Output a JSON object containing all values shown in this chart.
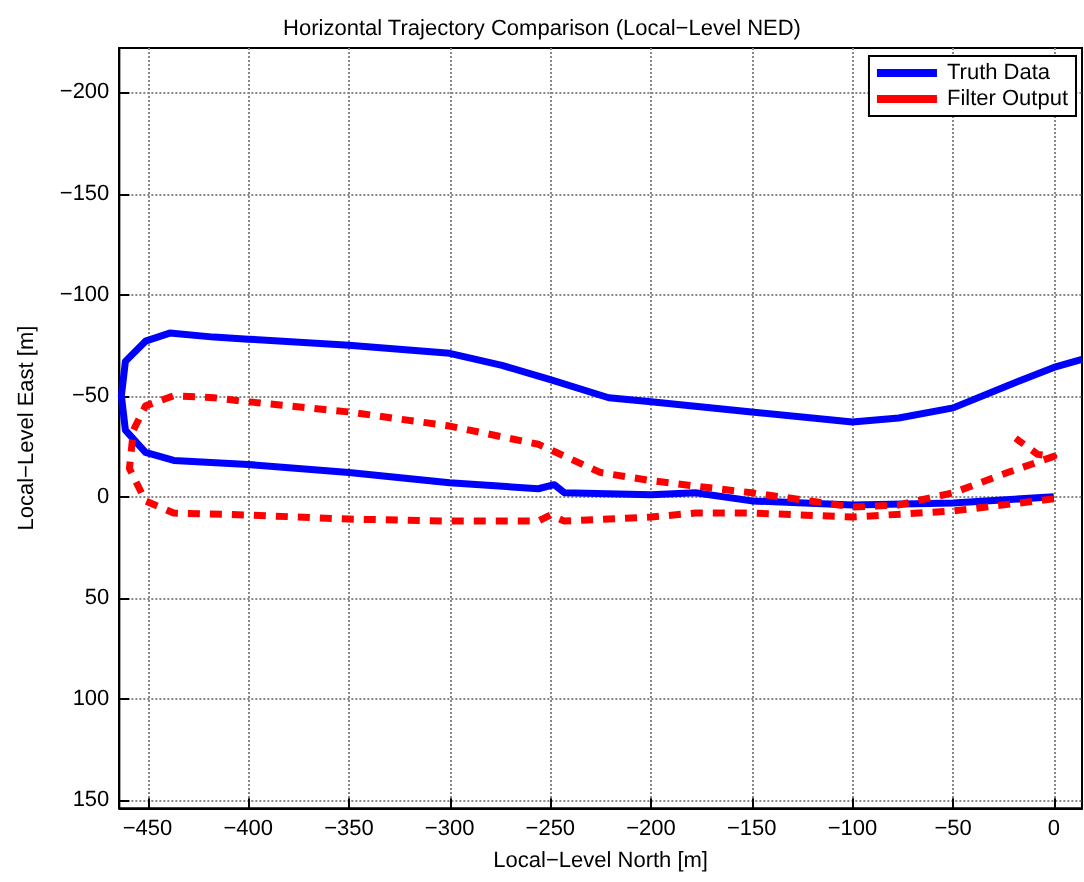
{
  "chart_data": {
    "type": "line",
    "title": "Horizontal Trajectory Comparison (Local−Level NED)",
    "xlabel": "Local−Level North [m]",
    "ylabel": "Local−Level East [m]",
    "xlim": [
      -464,
      14
    ],
    "ylim": [
      154,
      -222
    ],
    "xticks": [
      {
        "value": -450,
        "label": "−450"
      },
      {
        "value": -400,
        "label": "−400"
      },
      {
        "value": -350,
        "label": "−350"
      },
      {
        "value": -300,
        "label": "−300"
      },
      {
        "value": -250,
        "label": "−250"
      },
      {
        "value": -200,
        "label": "−200"
      },
      {
        "value": -150,
        "label": "−150"
      },
      {
        "value": -100,
        "label": "−100"
      },
      {
        "value": -50,
        "label": "−50"
      },
      0
    ],
    "yticks": [
      {
        "value": -200,
        "label": "−200"
      },
      {
        "value": -150,
        "label": "−150"
      },
      {
        "value": -100,
        "label": "−100"
      },
      {
        "value": -50,
        "label": "−50"
      },
      0,
      50,
      100,
      150
    ],
    "grid": true,
    "legend": "top right",
    "series": [
      {
        "name": "Truth Data",
        "color": "#0000ff",
        "line_style": "solid",
        "x": [
          0,
          -50,
          -100,
          -150,
          -178,
          -200,
          -243,
          -248,
          -256,
          -300,
          -350,
          -400,
          -437,
          -451,
          -461,
          -463,
          -461,
          -451,
          -439,
          -417,
          -400,
          -350,
          -300,
          -274,
          -250,
          -221,
          -200,
          -150,
          -100,
          -77,
          -50,
          -23,
          0,
          14
        ],
        "values": [
          0,
          3,
          4,
          2,
          -2,
          -1,
          -2,
          -6,
          -4,
          -7,
          -12,
          -16,
          -18,
          -22,
          -33,
          -50,
          -67,
          -77,
          -81,
          -79,
          -78,
          -75,
          -71,
          -65,
          -58,
          -49,
          -47,
          -42,
          -37,
          -39,
          -44,
          -55,
          -64,
          -68
        ]
      },
      {
        "name": "Filter Output",
        "color": "#ff0000",
        "line_style": "dashed",
        "x": [
          0,
          -50,
          -100,
          -150,
          -178,
          -200,
          -243,
          -250,
          -256,
          -300,
          -350,
          -400,
          -437,
          -451,
          -459,
          -457,
          -451,
          -437,
          -417,
          -400,
          -350,
          -300,
          -256,
          -225,
          -200,
          -150,
          -100,
          -77,
          -50,
          -23,
          0,
          -8,
          -19
        ],
        "values": [
          1,
          7,
          10,
          8,
          8,
          10,
          12,
          9,
          12,
          12,
          11,
          9,
          8,
          2,
          -14,
          -33,
          -45,
          -50,
          -49,
          -47,
          -42,
          -35,
          -26,
          -12,
          -8,
          -2,
          5,
          4,
          -2,
          -12,
          -20,
          -21,
          -29
        ]
      }
    ]
  }
}
